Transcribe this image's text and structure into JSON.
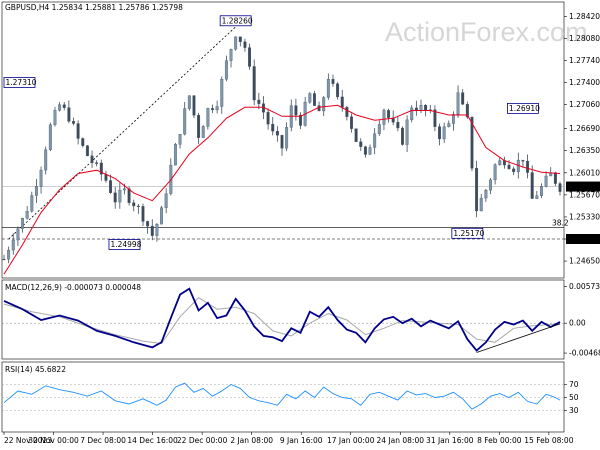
{
  "chart_data": [
    {
      "type": "candlestick",
      "header": "GBPUSD,H4  1.25834 1.25881 1.25786 1.25798",
      "watermark": "ActionForex.com",
      "x_ticks": [
        "22 Nov 2023",
        "30 Nov 00:00",
        "7 Dec 08:00",
        "14 Dec 16:00",
        "22 Dec 00:00",
        "2 Jan 08:00",
        "9 Jan 16:00",
        "17 Jan 00:00",
        "24 Jan 08:00",
        "31 Jan 16:00",
        "8 Feb 00:00",
        "15 Feb 08:00"
      ],
      "y_ticks": [
        "1.28420",
        "1.28080",
        "1.27740",
        "1.27400",
        "1.27060",
        "1.26690",
        "1.26350",
        "1.26010",
        "1.25670",
        "1.25330",
        "1.24990",
        "1.24650"
      ],
      "ylim": [
        1.2442,
        1.2858
      ],
      "last_price": "1.25798",
      "moving_average": "red line",
      "close_path": [
        [
          0,
          1.2468
        ],
        [
          2,
          1.2505
        ],
        [
          4,
          1.2528
        ],
        [
          6,
          1.2565
        ],
        [
          8,
          1.2612
        ],
        [
          10,
          1.2672
        ],
        [
          12,
          1.2705
        ],
        [
          14,
          1.2688
        ],
        [
          16,
          1.2652
        ],
        [
          18,
          1.2628
        ],
        [
          20,
          1.2608
        ],
        [
          22,
          1.259
        ],
        [
          24,
          1.256
        ],
        [
          26,
          1.2572
        ],
        [
          28,
          1.2555
        ],
        [
          30,
          1.2535
        ],
        [
          32,
          1.2505
        ],
        [
          34,
          1.254
        ],
        [
          36,
          1.261
        ],
        [
          38,
          1.2668
        ],
        [
          40,
          1.272
        ],
        [
          42,
          1.266
        ],
        [
          44,
          1.2698
        ],
        [
          46,
          1.2712
        ],
        [
          48,
          1.277
        ],
        [
          50,
          1.2818
        ],
        [
          52,
          1.2795
        ],
        [
          54,
          1.272
        ],
        [
          56,
          1.2695
        ],
        [
          58,
          1.266
        ],
        [
          60,
          1.264
        ],
        [
          62,
          1.27
        ],
        [
          64,
          1.2682
        ],
        [
          66,
          1.272
        ],
        [
          68,
          1.2688
        ],
        [
          70,
          1.275
        ],
        [
          72,
          1.2712
        ],
        [
          74,
          1.2695
        ],
        [
          76,
          1.2652
        ],
        [
          78,
          1.2622
        ],
        [
          80,
          1.2668
        ],
        [
          82,
          1.27
        ],
        [
          84,
          1.2672
        ],
        [
          86,
          1.2652
        ],
        [
          88,
          1.2705
        ],
        [
          90,
          1.27
        ],
        [
          92,
          1.269
        ],
        [
          94,
          1.266
        ],
        [
          96,
          1.2675
        ],
        [
          98,
          1.272
        ],
        [
          100,
          1.268
        ],
        [
          102,
          1.2545
        ],
        [
          104,
          1.2575
        ],
        [
          106,
          1.2612
        ],
        [
          108,
          1.2622
        ],
        [
          110,
          1.261
        ],
        [
          112,
          1.2625
        ],
        [
          114,
          1.256
        ],
        [
          116,
          1.2578
        ],
        [
          118,
          1.2598
        ],
        [
          120,
          1.258
        ]
      ],
      "ma_path": [
        [
          0,
          1.2445
        ],
        [
          4,
          1.249
        ],
        [
          8,
          1.254
        ],
        [
          12,
          1.2575
        ],
        [
          16,
          1.26
        ],
        [
          20,
          1.2605
        ],
        [
          24,
          1.2592
        ],
        [
          28,
          1.257
        ],
        [
          32,
          1.2558
        ],
        [
          36,
          1.259
        ],
        [
          40,
          1.263
        ],
        [
          44,
          1.2655
        ],
        [
          48,
          1.2685
        ],
        [
          52,
          1.2702
        ],
        [
          56,
          1.2702
        ],
        [
          60,
          1.2688
        ],
        [
          64,
          1.2688
        ],
        [
          68,
          1.2702
        ],
        [
          72,
          1.2705
        ],
        [
          76,
          1.269
        ],
        [
          80,
          1.2682
        ],
        [
          84,
          1.2685
        ],
        [
          88,
          1.2697
        ],
        [
          92,
          1.2697
        ],
        [
          96,
          1.269
        ],
        [
          100,
          1.269
        ],
        [
          104,
          1.264
        ],
        [
          108,
          1.262
        ],
        [
          112,
          1.261
        ],
        [
          116,
          1.2602
        ],
        [
          120,
          1.26
        ]
      ],
      "annotations": [
        {
          "text": "1.28260",
          "x": 50,
          "y": 1.2826
        },
        {
          "text": "1.27310",
          "x": 1,
          "y": 1.2731
        },
        {
          "text": "1.26910",
          "x": 112,
          "y": 1.2691
        },
        {
          "text": "1.24998",
          "x": 26,
          "y": 1.24998
        },
        {
          "text": "1.25170",
          "x": 100,
          "y": 1.2517
        }
      ],
      "horizontal_levels": [
        {
          "value": 1.2517,
          "style": "solid",
          "label": "38.2"
        },
        {
          "value": 1.2499,
          "style": "dashed",
          "label": "1.24990"
        },
        {
          "value": 1.25798,
          "style": "solid",
          "label": "1.25798"
        }
      ],
      "trendline": [
        [
          1,
          1.2499
        ],
        [
          50,
          1.2826
        ]
      ]
    },
    {
      "type": "line",
      "header": "MACD(12,26,9) -0.000073 0.000048",
      "ylim": [
        -0.0053,
        0.0063
      ],
      "y_ticks": [
        "0.00573",
        "0.00",
        "-0.004685"
      ],
      "series": [
        {
          "color": "#00008b",
          "values": [
            [
              0,
              0.0035
            ],
            [
              4,
              0.0022
            ],
            [
              8,
              0.0005
            ],
            [
              12,
              0.0012
            ],
            [
              16,
              0.0004
            ],
            [
              20,
              -0.0012
            ],
            [
              24,
              -0.002
            ],
            [
              28,
              -0.003
            ],
            [
              32,
              -0.0038
            ],
            [
              34,
              -0.003
            ],
            [
              36,
              0.0008
            ],
            [
              38,
              0.0045
            ],
            [
              40,
              0.0054
            ],
            [
              42,
              0.002
            ],
            [
              44,
              0.0032
            ],
            [
              46,
              0.0008
            ],
            [
              48,
              0.0012
            ],
            [
              50,
              0.0038
            ],
            [
              52,
              0.002
            ],
            [
              54,
              -0.0005
            ],
            [
              56,
              -0.002
            ],
            [
              58,
              -0.0022
            ],
            [
              60,
              -0.0028
            ],
            [
              62,
              -0.0008
            ],
            [
              64,
              -0.0015
            ],
            [
              66,
              0.0018
            ],
            [
              68,
              0.001
            ],
            [
              70,
              0.0025
            ],
            [
              72,
              0.0005
            ],
            [
              74,
              -0.001
            ],
            [
              76,
              -0.0015
            ],
            [
              78,
              -0.003
            ],
            [
              80,
              -0.0008
            ],
            [
              82,
              0.0006
            ],
            [
              84,
              0.001
            ],
            [
              86,
              0.0
            ],
            [
              88,
              0.0007
            ],
            [
              90,
              -0.0005
            ],
            [
              92,
              0.0004
            ],
            [
              94,
              -0.0002
            ],
            [
              96,
              -0.0008
            ],
            [
              98,
              0.0003
            ],
            [
              100,
              -0.0025
            ],
            [
              102,
              -0.0043
            ],
            [
              104,
              -0.003
            ],
            [
              106,
              -0.001
            ],
            [
              108,
              0.0002
            ],
            [
              110,
              -0.0002
            ],
            [
              112,
              0.0004
            ],
            [
              114,
              -0.0012
            ],
            [
              116,
              0.0002
            ],
            [
              118,
              -0.0006
            ],
            [
              120,
              0.0002
            ]
          ]
        },
        {
          "color": "#a9a9a9",
          "values": [
            [
              0,
              0.003
            ],
            [
              6,
              0.0018
            ],
            [
              12,
              0.001
            ],
            [
              18,
              -0.0005
            ],
            [
              24,
              -0.0018
            ],
            [
              30,
              -0.0028
            ],
            [
              34,
              -0.0032
            ],
            [
              38,
              0.001
            ],
            [
              42,
              0.004
            ],
            [
              46,
              0.0022
            ],
            [
              50,
              0.0025
            ],
            [
              54,
              0.0015
            ],
            [
              58,
              -0.0012
            ],
            [
              62,
              -0.002
            ],
            [
              66,
              0.0
            ],
            [
              70,
              0.0015
            ],
            [
              74,
              0.0005
            ],
            [
              78,
              -0.0018
            ],
            [
              82,
              -0.0008
            ],
            [
              86,
              0.0004
            ],
            [
              90,
              0.0002
            ],
            [
              94,
              0.0
            ],
            [
              98,
              -0.0002
            ],
            [
              102,
              -0.0025
            ],
            [
              106,
              -0.003
            ],
            [
              110,
              -0.0008
            ],
            [
              114,
              -0.0004
            ],
            [
              120,
              -0.0001
            ]
          ]
        }
      ],
      "trendline": [
        [
          102,
          -0.0046
        ],
        [
          120,
          -0.0001
        ]
      ]
    },
    {
      "type": "line",
      "header": "RSI(14) 45.6822",
      "ylim": [
        0,
        100
      ],
      "y_ticks": [
        "70",
        "50",
        "30"
      ],
      "levels": [
        70,
        50,
        30
      ],
      "series": [
        {
          "color": "#1e90ff",
          "values": [
            [
              0,
              42
            ],
            [
              3,
              60
            ],
            [
              6,
              55
            ],
            [
              9,
              68
            ],
            [
              12,
              62
            ],
            [
              15,
              58
            ],
            [
              18,
              52
            ],
            [
              21,
              60
            ],
            [
              24,
              45
            ],
            [
              27,
              40
            ],
            [
              30,
              48
            ],
            [
              33,
              38
            ],
            [
              35,
              46
            ],
            [
              37,
              66
            ],
            [
              39,
              72
            ],
            [
              41,
              58
            ],
            [
              43,
              64
            ],
            [
              45,
              52
            ],
            [
              47,
              60
            ],
            [
              49,
              70
            ],
            [
              51,
              64
            ],
            [
              53,
              50
            ],
            [
              55,
              45
            ],
            [
              57,
              42
            ],
            [
              59,
              38
            ],
            [
              61,
              55
            ],
            [
              63,
              48
            ],
            [
              65,
              60
            ],
            [
              67,
              50
            ],
            [
              69,
              66
            ],
            [
              71,
              56
            ],
            [
              73,
              50
            ],
            [
              75,
              48
            ],
            [
              77,
              38
            ],
            [
              79,
              55
            ],
            [
              81,
              58
            ],
            [
              83,
              52
            ],
            [
              85,
              46
            ],
            [
              87,
              60
            ],
            [
              89,
              54
            ],
            [
              91,
              56
            ],
            [
              93,
              50
            ],
            [
              95,
              52
            ],
            [
              97,
              58
            ],
            [
              99,
              48
            ],
            [
              101,
              32
            ],
            [
              103,
              40
            ],
            [
              105,
              52
            ],
            [
              107,
              56
            ],
            [
              109,
              50
            ],
            [
              111,
              58
            ],
            [
              113,
              44
            ],
            [
              115,
              40
            ],
            [
              117,
              55
            ],
            [
              119,
              50
            ],
            [
              120,
              46
            ]
          ]
        }
      ]
    }
  ]
}
